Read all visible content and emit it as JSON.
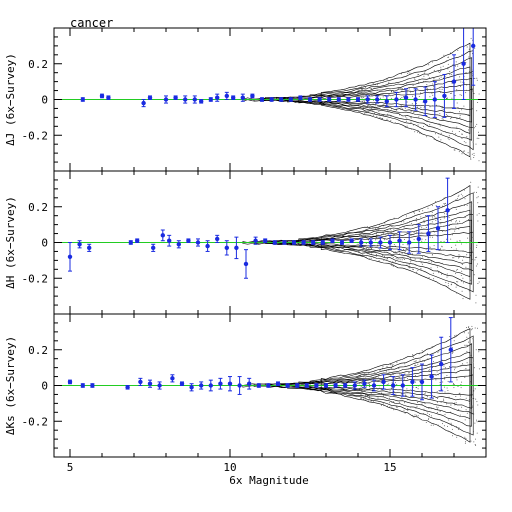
{
  "chart_data": {
    "type": "scatter",
    "title": "cancer",
    "xlabel": "6x Magnitude",
    "xlim": [
      4.5,
      18
    ],
    "x_ticks": [
      5,
      10,
      15
    ],
    "x_tick_labels": [
      "5",
      "10",
      "15"
    ],
    "zero_line_color": "#22cc22",
    "point_color": "#1a2be0",
    "grid": false,
    "panels": [
      {
        "ylabel": "ΔJ (6x−Survey)",
        "ylim": [
          -0.4,
          0.4
        ],
        "y_ticks": [
          0.2,
          0,
          -0.2
        ],
        "y_tick_labels": [
          "0.2",
          "0",
          "-0.2"
        ],
        "series": [
          {
            "x": [
              5.4,
              6.0,
              6.2,
              7.3,
              7.5,
              8.0,
              8.3,
              8.6,
              8.9,
              9.1,
              9.4,
              9.6,
              9.9,
              10.1,
              10.4,
              10.7,
              11.0,
              11.3,
              11.6,
              11.9,
              12.2,
              12.5,
              12.8,
              13.1,
              13.4,
              13.7,
              14.0,
              14.3,
              14.6,
              14.9,
              15.2,
              15.5,
              15.8,
              16.1,
              16.4,
              16.7,
              17.0,
              17.3,
              17.6
            ],
            "y": [
              0.0,
              0.02,
              0.01,
              -0.02,
              0.01,
              0.0,
              0.01,
              0.0,
              0.0,
              -0.01,
              0.0,
              0.01,
              0.02,
              0.01,
              0.01,
              0.02,
              0.0,
              0.0,
              0.0,
              0.0,
              0.01,
              0.0,
              0.0,
              0.0,
              0.0,
              0.0,
              0.0,
              0.0,
              0.0,
              -0.01,
              0.0,
              0.01,
              0.0,
              -0.01,
              0.0,
              0.02,
              0.1,
              0.2,
              0.3
            ],
            "err": [
              0.01,
              0.01,
              0.01,
              0.02,
              0.01,
              0.02,
              0.01,
              0.02,
              0.02,
              0.01,
              0.01,
              0.02,
              0.02,
              0.01,
              0.02,
              0.01,
              0.01,
              0.01,
              0.01,
              0.01,
              0.01,
              0.01,
              0.01,
              0.01,
              0.01,
              0.01,
              0.01,
              0.02,
              0.02,
              0.03,
              0.04,
              0.05,
              0.06,
              0.08,
              0.1,
              0.12,
              0.15,
              0.2,
              0.22
            ]
          }
        ]
      },
      {
        "ylabel": "ΔH (6x−Survey)",
        "ylim": [
          -0.4,
          0.4
        ],
        "y_ticks": [
          0.2,
          0,
          -0.2
        ],
        "y_tick_labels": [
          "0.2",
          "0",
          "-0.2"
        ],
        "series": [
          {
            "x": [
              5.0,
              5.3,
              5.6,
              6.9,
              7.1,
              7.6,
              7.9,
              8.1,
              8.4,
              8.7,
              9.0,
              9.3,
              9.6,
              9.9,
              10.2,
              10.5,
              10.8,
              11.1,
              11.4,
              11.7,
              12.0,
              12.3,
              12.6,
              12.9,
              13.2,
              13.5,
              13.8,
              14.1,
              14.4,
              14.7,
              15.0,
              15.3,
              15.6,
              15.9,
              16.2,
              16.5,
              16.8
            ],
            "y": [
              -0.08,
              -0.01,
              -0.03,
              0.0,
              0.01,
              -0.03,
              0.04,
              0.01,
              -0.01,
              0.01,
              0.0,
              -0.02,
              0.02,
              -0.03,
              -0.03,
              -0.12,
              0.01,
              0.01,
              0.0,
              0.0,
              0.0,
              0.0,
              0.0,
              0.0,
              0.01,
              0.0,
              0.01,
              0.0,
              0.0,
              0.0,
              0.0,
              0.01,
              0.0,
              0.02,
              0.05,
              0.08,
              0.18
            ],
            "err": [
              0.08,
              0.02,
              0.02,
              0.01,
              0.01,
              0.02,
              0.03,
              0.03,
              0.02,
              0.01,
              0.02,
              0.03,
              0.02,
              0.04,
              0.06,
              0.08,
              0.02,
              0.01,
              0.01,
              0.01,
              0.01,
              0.01,
              0.01,
              0.01,
              0.01,
              0.01,
              0.01,
              0.02,
              0.02,
              0.03,
              0.04,
              0.05,
              0.06,
              0.08,
              0.1,
              0.12,
              0.18
            ]
          }
        ]
      },
      {
        "ylabel": "ΔKs (6x−Survey)",
        "ylim": [
          -0.4,
          0.4
        ],
        "y_ticks": [
          0.2,
          0,
          -0.2
        ],
        "y_tick_labels": [
          "0.2",
          "0",
          "-0.2"
        ],
        "series": [
          {
            "x": [
              5.0,
              5.4,
              5.7,
              6.8,
              7.2,
              7.5,
              7.8,
              8.2,
              8.5,
              8.8,
              9.1,
              9.4,
              9.7,
              10.0,
              10.3,
              10.6,
              10.9,
              11.2,
              11.5,
              11.8,
              12.1,
              12.4,
              12.7,
              13.0,
              13.3,
              13.6,
              13.9,
              14.2,
              14.5,
              14.8,
              15.1,
              15.4,
              15.7,
              16.0,
              16.3,
              16.6,
              16.9
            ],
            "y": [
              0.02,
              0.0,
              0.0,
              -0.01,
              0.02,
              0.01,
              0.0,
              0.04,
              0.01,
              -0.01,
              0.0,
              0.0,
              0.01,
              0.01,
              0.0,
              0.01,
              0.0,
              0.0,
              0.01,
              0.0,
              0.0,
              0.0,
              0.0,
              0.0,
              0.0,
              0.0,
              0.0,
              0.01,
              0.0,
              0.02,
              0.0,
              0.0,
              0.02,
              0.02,
              0.05,
              0.12,
              0.2
            ],
            "err": [
              0.01,
              0.01,
              0.01,
              0.01,
              0.02,
              0.02,
              0.02,
              0.02,
              0.01,
              0.02,
              0.02,
              0.03,
              0.03,
              0.04,
              0.05,
              0.03,
              0.01,
              0.01,
              0.01,
              0.01,
              0.01,
              0.01,
              0.01,
              0.01,
              0.01,
              0.01,
              0.02,
              0.02,
              0.03,
              0.04,
              0.05,
              0.06,
              0.08,
              0.1,
              0.12,
              0.15,
              0.18
            ]
          }
        ]
      }
    ]
  }
}
